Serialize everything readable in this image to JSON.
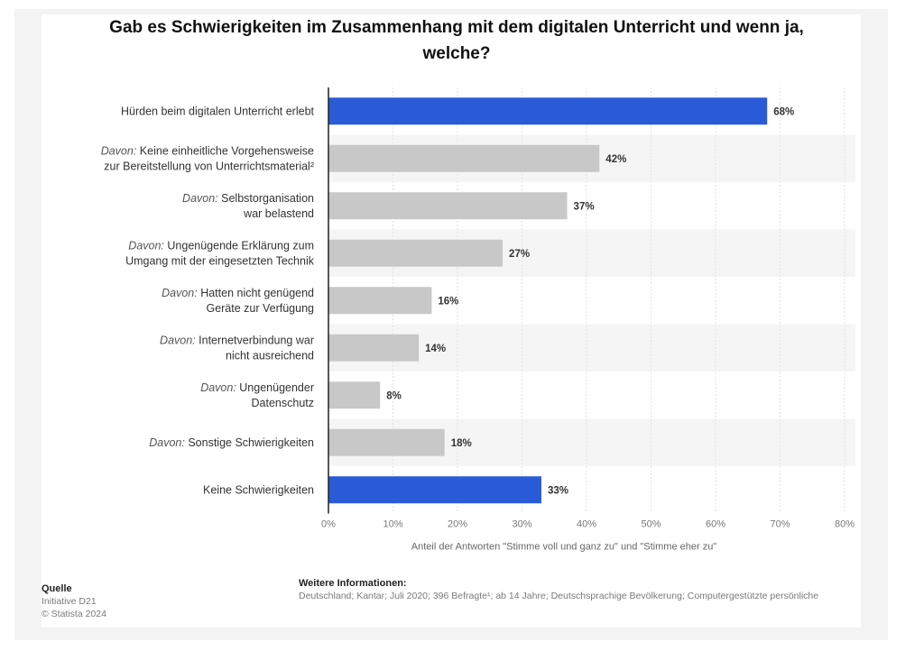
{
  "title": "Gab es Schwierigkeiten im Zusammenhang mit dem digitalen Unterricht und wenn ja, welche?",
  "colors": {
    "primary": "#2a5bd7",
    "secondary": "#c8c8c8",
    "stripe": "#f5f5f5",
    "grid": "#e2e2e2"
  },
  "chart_data": {
    "type": "bar",
    "orientation": "horizontal",
    "categories": [
      {
        "prefix": "",
        "lines": [
          "Hürden beim digitalen Unterricht erlebt"
        ]
      },
      {
        "prefix": "Davon:",
        "lines": [
          "Keine einheitliche Vorgehensweise",
          "zur Bereitstellung von Unterrichtsmaterial²"
        ]
      },
      {
        "prefix": "Davon:",
        "lines": [
          "Selbstorganisation",
          "war belastend"
        ]
      },
      {
        "prefix": "Davon:",
        "lines": [
          "Ungenügende Erklärung zum",
          "Umgang mit der eingesetzten Technik"
        ]
      },
      {
        "prefix": "Davon:",
        "lines": [
          "Hatten nicht genügend",
          "Geräte zur Verfügung"
        ]
      },
      {
        "prefix": "Davon:",
        "lines": [
          "Internetverbindung war",
          "nicht ausreichend"
        ]
      },
      {
        "prefix": "Davon:",
        "lines": [
          "Ungenügender",
          "Datenschutz"
        ]
      },
      {
        "prefix": "Davon:",
        "lines": [
          "Sonstige Schwierigkeiten"
        ]
      },
      {
        "prefix": "",
        "lines": [
          "Keine Schwierigkeiten"
        ]
      }
    ],
    "values": [
      68,
      42,
      37,
      27,
      16,
      14,
      8,
      18,
      33
    ],
    "highlight": [
      true,
      false,
      false,
      false,
      false,
      false,
      false,
      false,
      true
    ],
    "value_labels": [
      "68%",
      "42%",
      "37%",
      "27%",
      "16%",
      "14%",
      "8%",
      "18%",
      "33%"
    ],
    "xlim": [
      0,
      80
    ],
    "xticks": [
      0,
      10,
      20,
      30,
      40,
      50,
      60,
      70,
      80
    ],
    "xtick_labels": [
      "0%",
      "10%",
      "20%",
      "30%",
      "40%",
      "50%",
      "60%",
      "70%",
      "80%"
    ],
    "xlabel": "Anteil der Antworten \"Stimme voll und ganz zu\" und \"Stimme eher zu\"",
    "grid": true
  },
  "source": {
    "heading": "Quelle",
    "line1": "Initiative D21",
    "line2": "© Statista 2024"
  },
  "info": {
    "heading": "Weitere Informationen:",
    "text": "Deutschland; Kantar; Juli 2020; 396 Befragte¹; ab 14 Jahre; Deutschsprachige Bevölkerung; Computergestützte persönliche"
  }
}
